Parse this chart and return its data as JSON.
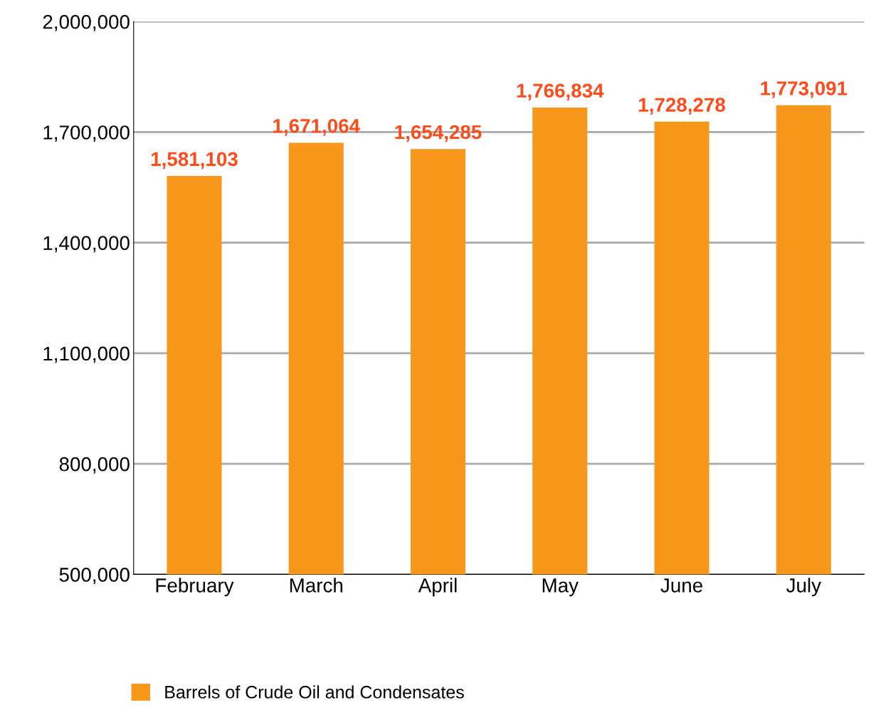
{
  "chart_data": {
    "type": "bar",
    "categories": [
      "February",
      "March",
      "April",
      "May",
      "June",
      "July"
    ],
    "series": [
      {
        "name": "Barrels of Crude Oil and Condensates",
        "color": "#f7971c",
        "values": [
          1581103,
          1671064,
          1654285,
          1766834,
          1728278,
          1773091
        ]
      }
    ],
    "ylim": [
      500000,
      2000000
    ],
    "yticks": [
      {
        "value": 500000,
        "label": "500,000"
      },
      {
        "value": 800000,
        "label": "800,000"
      },
      {
        "value": 1100000,
        "label": "1,100,000"
      },
      {
        "value": 1400000,
        "label": "1,400,000"
      },
      {
        "value": 1700000,
        "label": "1,700,000"
      },
      {
        "value": 2000000,
        "label": "2,000,000"
      }
    ],
    "value_labels": [
      "1,581,103",
      "1,671,064",
      "1,654,285",
      "1,766,834",
      "1,728,278",
      "1,773,091"
    ],
    "grid": "y",
    "legend": "bottom left"
  }
}
